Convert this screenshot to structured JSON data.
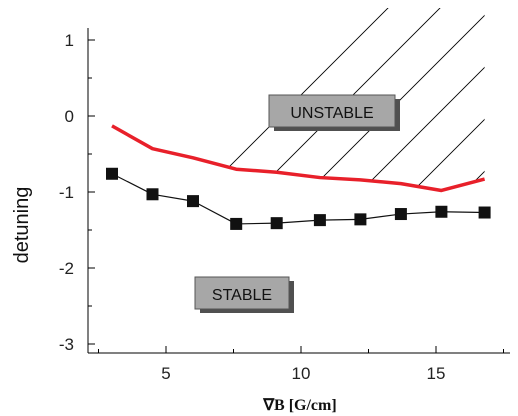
{
  "chart_data": {
    "type": "line",
    "xlabel": "∇B [G/cm]",
    "ylabel": "detuning",
    "xlim": [
      0.5,
      18.0
    ],
    "ylim": [
      -3.1,
      1.2
    ],
    "x_ticks": [
      5,
      10,
      15
    ],
    "y_ticks": [
      1,
      0,
      -1,
      -2,
      -3
    ],
    "grid": false,
    "series": [
      {
        "color": "#e8202a",
        "marker": "none",
        "x": [
          3.0,
          4.5,
          6.0,
          7.6,
          9.1,
          10.7,
          12.2,
          13.7,
          15.2,
          16.8
        ],
        "y": [
          -0.13,
          -0.43,
          -0.55,
          -0.7,
          -0.74,
          -0.81,
          -0.84,
          -0.89,
          -0.98,
          -0.83
        ]
      },
      {
        "color": "#111111",
        "marker": "square",
        "x": [
          3.0,
          4.5,
          6.0,
          7.6,
          9.1,
          10.7,
          12.2,
          13.7,
          15.2,
          16.8
        ],
        "y": [
          -0.76,
          -1.03,
          -1.12,
          -1.42,
          -1.41,
          -1.37,
          -1.36,
          -1.29,
          -1.26,
          -1.27
        ]
      }
    ],
    "annotations": [
      {
        "text": "UNSTABLE",
        "x": 12.3,
        "y": 0.05
      },
      {
        "text": "STABLE",
        "x": 7.3,
        "y": -2.38
      }
    ],
    "region_hatching": "diagonal lines above the red boundary"
  }
}
